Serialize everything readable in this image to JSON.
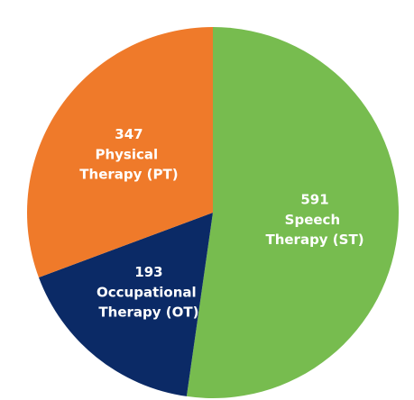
{
  "chart_data": {
    "type": "pie",
    "categories": [
      "Speech Therapy (ST)",
      "Occupational Therapy (OT)",
      "Physical Therapy (PT)"
    ],
    "values": [
      591,
      193,
      347
    ],
    "colors": [
      "#77bc4f",
      "#0b2a66",
      "#ef7a2a"
    ],
    "start_angle": 0,
    "direction": "clockwise"
  }
}
